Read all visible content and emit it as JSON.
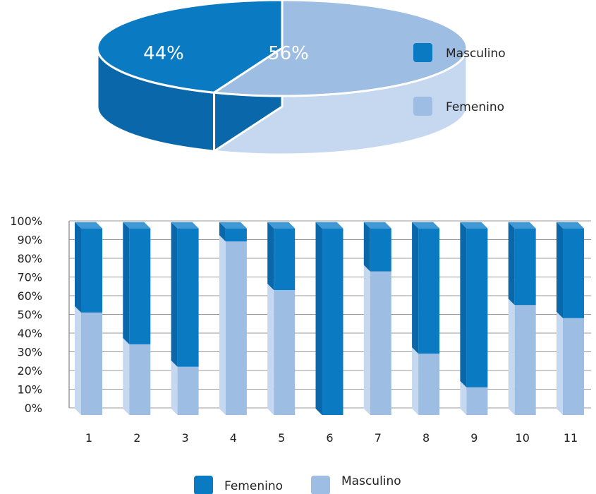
{
  "colors": {
    "dark_blue": "#0a7ac3",
    "dark_blue_side": "#0a67aa",
    "dark_blue_top": "#4098d4",
    "light_blue": "#9dbde3",
    "light_blue_side": "#c5d8ef",
    "light_blue_top": "#b7cfea",
    "grid": "#999999"
  },
  "chart_data": [
    {
      "type": "pie",
      "labels": [
        "Masculino",
        "Femenino"
      ],
      "values": [
        44,
        56
      ],
      "value_labels": [
        "44%",
        "56%"
      ],
      "colors": [
        "#0a7ac3",
        "#9dbde3"
      ],
      "legend": [
        {
          "label": "Masculino",
          "color": "#0a7ac3"
        },
        {
          "label": "Femenino",
          "color": "#9dbde3"
        }
      ],
      "legend_position": "right"
    },
    {
      "type": "bar",
      "stacked": true,
      "categories": [
        "1",
        "2",
        "3",
        "4",
        "5",
        "6",
        "7",
        "8",
        "9",
        "10",
        "11"
      ],
      "series": [
        {
          "name": "Masculino",
          "color": "#9dbde3",
          "values": [
            51,
            34,
            22,
            89,
            63,
            0,
            73,
            29,
            11,
            55,
            48
          ]
        },
        {
          "name": "Femenino",
          "color": "#0a7ac3",
          "values": [
            49,
            66,
            78,
            11,
            37,
            100,
            27,
            71,
            89,
            45,
            52
          ]
        }
      ],
      "y_ticks": [
        "0%",
        "10%",
        "20%",
        "30%",
        "40%",
        "50%",
        "60%",
        "70%",
        "80%",
        "90%",
        "100%"
      ],
      "ylim": [
        0,
        100
      ],
      "grid": true,
      "legend": [
        {
          "label": "Femenino",
          "color": "#0a7ac3"
        },
        {
          "label": "Masculino",
          "color": "#9dbde3"
        }
      ],
      "legend_position": "bottom"
    }
  ]
}
